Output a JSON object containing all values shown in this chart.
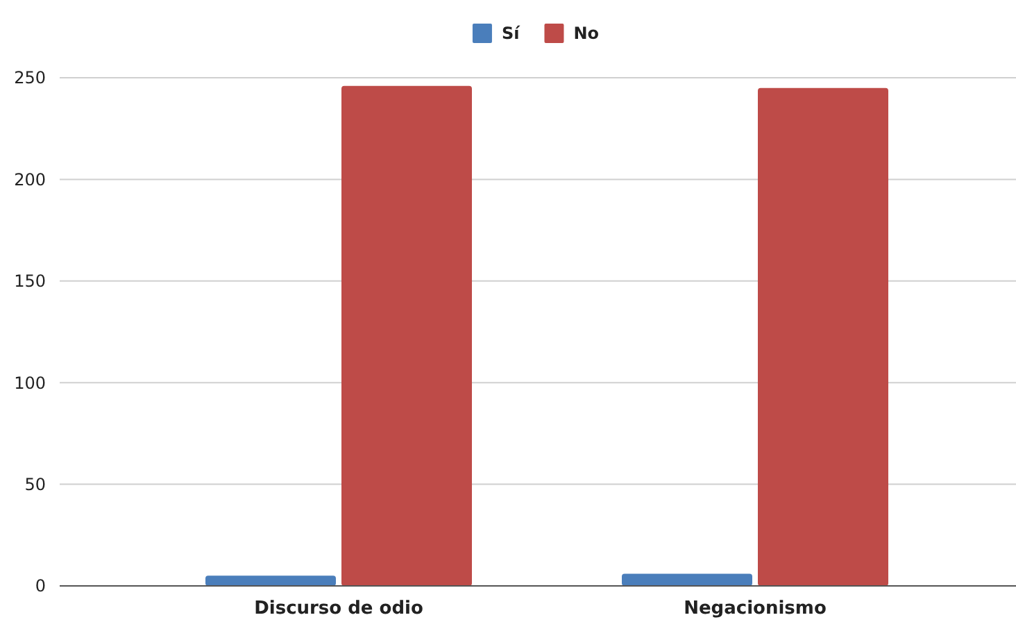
{
  "chart_data": {
    "type": "bar",
    "categories": [
      "Discurso de odio",
      "Negacionismo"
    ],
    "series": [
      {
        "name": "Sí",
        "color": "#4a7ebb",
        "values": [
          5,
          6
        ]
      },
      {
        "name": "No",
        "color": "#be4b48",
        "values": [
          246,
          245
        ]
      }
    ],
    "ylim": [
      0,
      250
    ],
    "yticks": [
      0,
      50,
      100,
      150,
      200,
      250
    ],
    "grid": "y",
    "legend": "top"
  }
}
